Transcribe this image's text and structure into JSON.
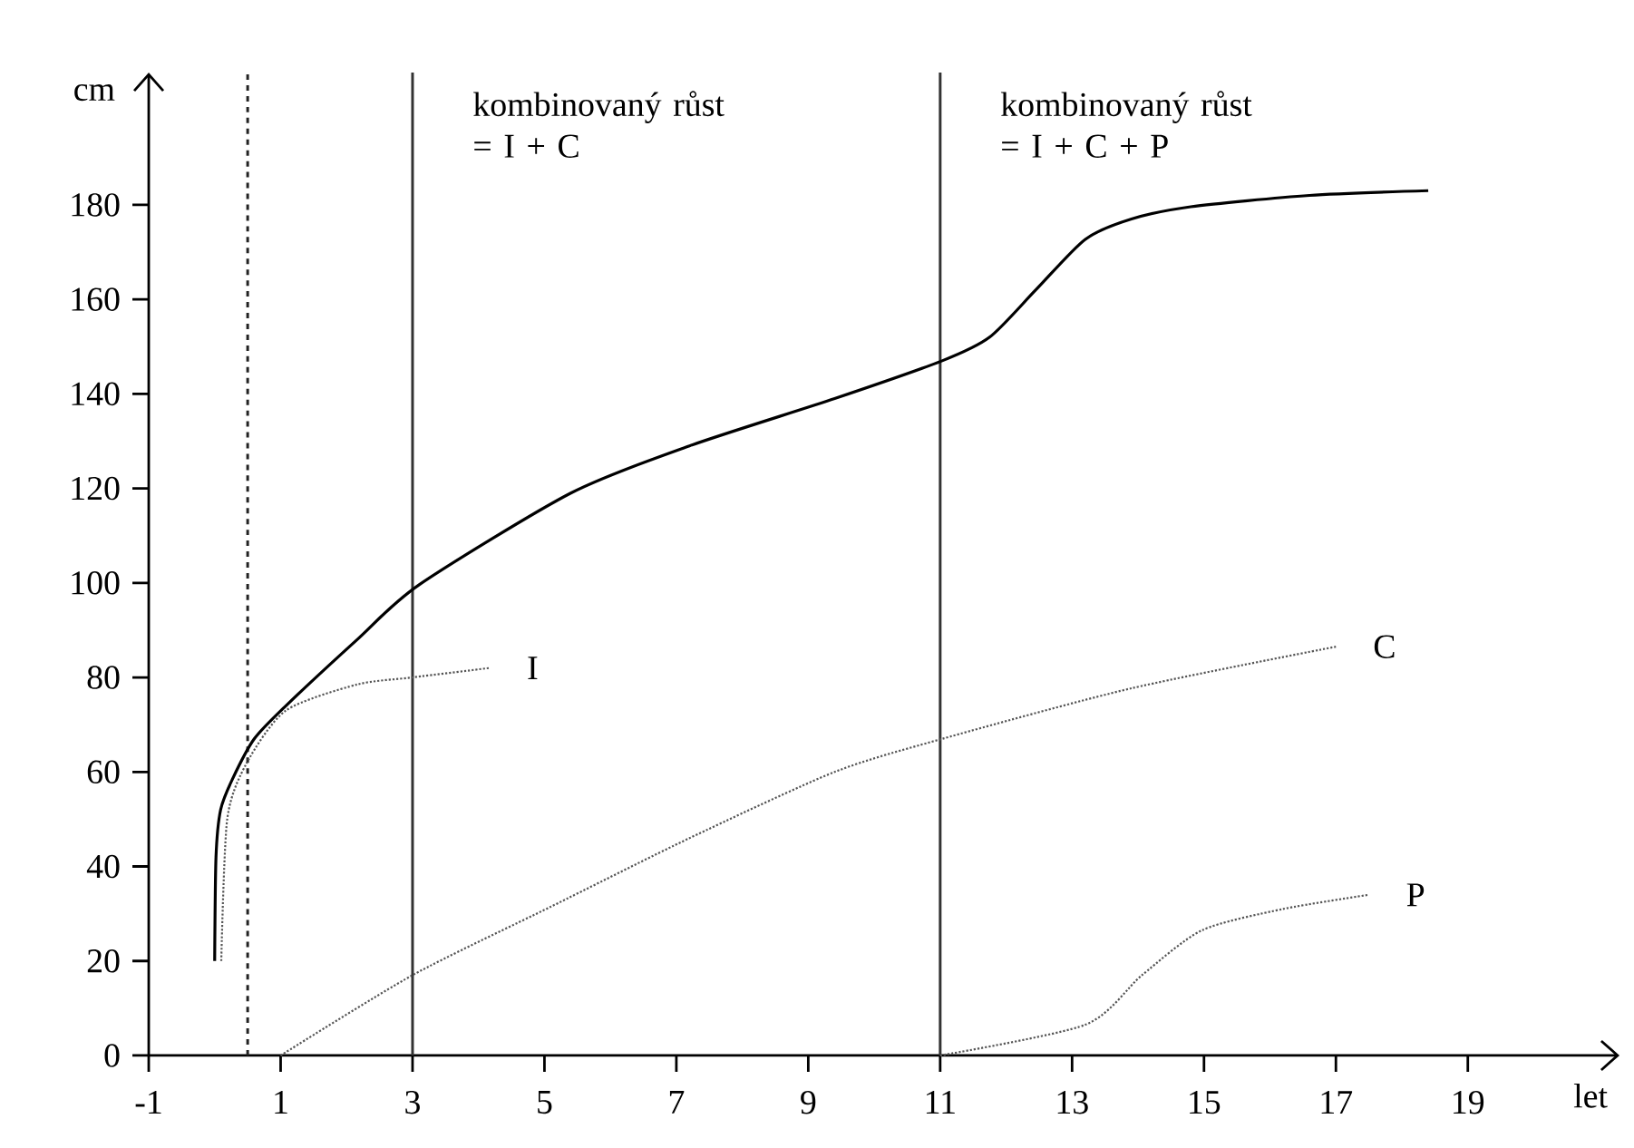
{
  "chart_data": {
    "type": "line",
    "xlabel": "let",
    "ylabel": "cm",
    "annotations": [
      "kombinovaný růst = I + C",
      "kombinovaný růst = I + C + P"
    ],
    "xlim": [
      -1,
      21.3
    ],
    "ylim": [
      0,
      208
    ],
    "xticks": [
      -1,
      1,
      3,
      5,
      7,
      9,
      11,
      13,
      15,
      17,
      19
    ],
    "yticks": [
      0,
      20,
      40,
      60,
      80,
      100,
      120,
      140,
      160,
      180
    ],
    "ref_lines": [
      {
        "axis": "x",
        "value": 0.5,
        "color": "#222222",
        "line_style": "dashed"
      },
      {
        "axis": "x",
        "value": 3,
        "color": "#333333",
        "line_style": "solid"
      },
      {
        "axis": "x",
        "value": 11,
        "color": "#333333",
        "line_style": "solid"
      }
    ],
    "series": [
      {
        "color": "#000000",
        "line_style": "solid",
        "x": [
          0,
          0.02,
          0.09,
          0.27,
          0.6,
          1.08,
          2.16,
          3.1,
          5.4,
          7.2,
          9.4,
          11.03,
          11.75,
          12.45,
          13.2,
          13.9,
          14.8,
          16.6,
          18.4
        ],
        "values": [
          20,
          42,
          52,
          58.5,
          67,
          74,
          88,
          99.6,
          119,
          129,
          139,
          147,
          152,
          162,
          172.7,
          177,
          179.6,
          182,
          183
        ]
      },
      {
        "name": "I",
        "color": "#555555",
        "line_style": "dotted",
        "x": [
          0.1,
          0.19,
          0.49,
          1.08,
          2.16,
          3,
          4.17
        ],
        "values": [
          20,
          50,
          62,
          73,
          78.5,
          80,
          82
        ]
      },
      {
        "name": "C",
        "color": "#555555",
        "line_style": "dotted",
        "x": [
          1,
          3,
          5.1,
          7.2,
          9.4,
          11.03,
          13.9,
          17
        ],
        "values": [
          0,
          17,
          31.5,
          46,
          60,
          67,
          77.7,
          86.5
        ]
      },
      {
        "name": "P",
        "color": "#555555",
        "line_style": "dotted",
        "x": [
          11,
          13.2,
          14.06,
          14.97,
          16.2,
          17.5
        ],
        "values": [
          0,
          6.5,
          17,
          26.5,
          31,
          34
        ]
      }
    ]
  }
}
